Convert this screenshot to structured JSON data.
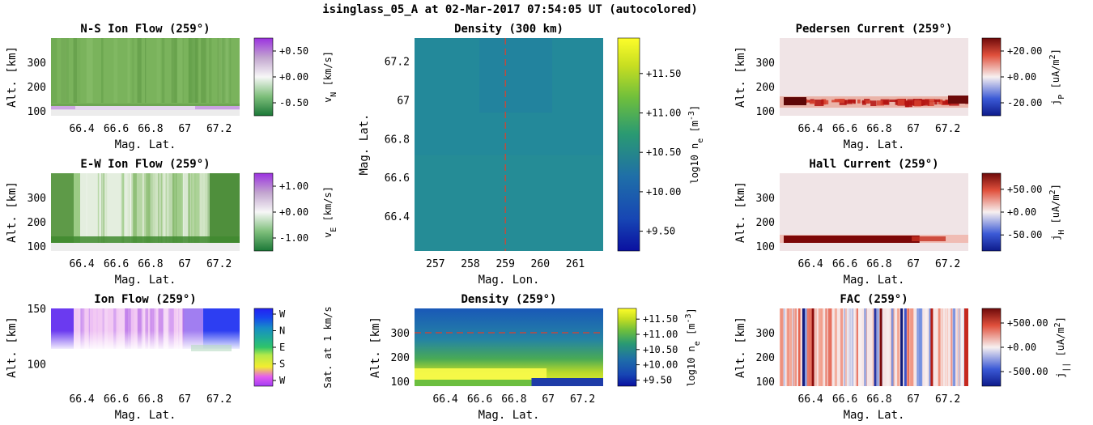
{
  "figure": {
    "suptitle": "isinglass_05_A at 02-Mar-2017 07:54:05 UT (autocolored)"
  },
  "chart_data": [
    {
      "id": "ns",
      "type": "heatmap",
      "title": "N-S Ion Flow (259°)",
      "xlabel": "Mag. Lat.",
      "ylabel": "Alt. [km]",
      "xticks": [
        "66.4",
        "66.6",
        "66.8",
        "67",
        "67.2"
      ],
      "yticks": [
        "100",
        "200",
        "300"
      ],
      "xlim": [
        66.22,
        67.32
      ],
      "ylim": [
        80,
        400
      ],
      "colorbar": {
        "label": "v_N [km/s]",
        "colormap": "PRGn",
        "range": [
          -0.75,
          0.75
        ],
        "ticks": [
          "+0.50",
          "+0.00",
          "-0.50"
        ],
        "tick_values": [
          0.5,
          0.0,
          -0.5
        ]
      }
    },
    {
      "id": "ew",
      "type": "heatmap",
      "title": "E-W Ion Flow (259°)",
      "xlabel": "Mag. Lat.",
      "ylabel": "Alt. [km]",
      "xticks": [
        "66.4",
        "66.6",
        "66.8",
        "67",
        "67.2"
      ],
      "yticks": [
        "100",
        "200",
        "300"
      ],
      "xlim": [
        66.22,
        67.32
      ],
      "ylim": [
        80,
        400
      ],
      "colorbar": {
        "label": "v_E [km/s]",
        "colormap": "PRGn",
        "range": [
          -1.5,
          1.5
        ],
        "ticks": [
          "+1.00",
          "+0.00",
          "-1.00"
        ],
        "tick_values": [
          1.0,
          0.0,
          -1.0
        ]
      }
    },
    {
      "id": "flow",
      "type": "heatmap",
      "title": "Ion Flow (259°)",
      "xlabel": "Mag. Lat.",
      "ylabel": "Alt. [km]",
      "xticks": [
        "66.4",
        "66.6",
        "66.8",
        "67",
        "67.2"
      ],
      "yticks": [
        "100",
        "150"
      ],
      "xlim": [
        66.22,
        67.32
      ],
      "ylim": [
        80,
        150
      ],
      "colorbar": {
        "label": "Sat. at 1 km/s",
        "colormap": "direction",
        "ticks": [
          "W",
          "N",
          "E",
          "S",
          "W"
        ]
      }
    },
    {
      "id": "dens300",
      "type": "heatmap",
      "title": "Density (300 km)",
      "xlabel": "Mag. Lon.",
      "ylabel": "Mag. Lat.",
      "xticks": [
        "257",
        "258",
        "259",
        "260",
        "261"
      ],
      "yticks": [
        "66.4",
        "66.6",
        "66.8",
        "67",
        "67.2"
      ],
      "xlim": [
        256.4,
        261.8
      ],
      "ylim": [
        66.22,
        67.32
      ],
      "marker_line": {
        "axis": "x",
        "value": 259
      },
      "colorbar": {
        "label": "log10 n_e [m^-3]",
        "colormap": "viridis",
        "range": [
          9.25,
          11.95
        ],
        "ticks": [
          "+11.50",
          "+11.00",
          "+10.50",
          "+10.00",
          "+9.50"
        ],
        "tick_values": [
          11.5,
          11.0,
          10.5,
          10.0,
          9.5
        ]
      }
    },
    {
      "id": "dens",
      "type": "heatmap",
      "title": "Density (259°)",
      "xlabel": "Mag. Lat.",
      "ylabel": "Alt. [km]",
      "xticks": [
        "66.4",
        "66.6",
        "66.8",
        "67",
        "67.2"
      ],
      "yticks": [
        "100",
        "200",
        "300"
      ],
      "xlim": [
        66.22,
        67.32
      ],
      "ylim": [
        80,
        400
      ],
      "marker_line": {
        "axis": "y",
        "value": 300
      },
      "colorbar": {
        "label": "log10 n_e [m^-3]",
        "colormap": "viridis",
        "range": [
          9.3,
          11.85
        ],
        "ticks": [
          "+11.50",
          "+11.00",
          "+10.50",
          "+10.00",
          "+9.50"
        ],
        "tick_values": [
          11.5,
          11.0,
          10.5,
          10.0,
          9.5
        ]
      }
    },
    {
      "id": "ped",
      "type": "heatmap",
      "title": "Pedersen Current (259°)",
      "xlabel": "Mag. Lat.",
      "ylabel": "Alt. [km]",
      "xticks": [
        "66.4",
        "66.6",
        "66.8",
        "67",
        "67.2"
      ],
      "yticks": [
        "100",
        "200",
        "300"
      ],
      "xlim": [
        66.22,
        67.32
      ],
      "ylim": [
        80,
        400
      ],
      "colorbar": {
        "label": "j_P [uA/m^2]",
        "colormap": "RdBu_r",
        "range": [
          -30,
          30
        ],
        "ticks": [
          "+20.00",
          "+0.00",
          "-20.00"
        ],
        "tick_values": [
          20,
          0,
          -20
        ]
      }
    },
    {
      "id": "hall",
      "type": "heatmap",
      "title": "Hall Current (259°)",
      "xlabel": "Mag. Lat.",
      "ylabel": "Alt. [km]",
      "xticks": [
        "66.4",
        "66.6",
        "66.8",
        "67",
        "67.2"
      ],
      "yticks": [
        "100",
        "200",
        "300"
      ],
      "xlim": [
        66.22,
        67.32
      ],
      "ylim": [
        80,
        400
      ],
      "colorbar": {
        "label": "j_H [uA/m^2]",
        "colormap": "RdBu_r",
        "range": [
          -85,
          85
        ],
        "ticks": [
          "+50.00",
          "+0.00",
          "-50.00"
        ],
        "tick_values": [
          50,
          0,
          -50
        ]
      }
    },
    {
      "id": "fac",
      "type": "heatmap",
      "title": "FAC (259°)",
      "xlabel": "Mag. Lat.",
      "ylabel": "Alt. [km]",
      "xticks": [
        "66.4",
        "66.6",
        "66.8",
        "67",
        "67.2"
      ],
      "yticks": [
        "100",
        "200",
        "300"
      ],
      "xlim": [
        66.22,
        67.32
      ],
      "ylim": [
        80,
        400
      ],
      "colorbar": {
        "label": "j_|| [uA/m^2]",
        "colormap": "RdBu_r",
        "range": [
          -800,
          800
        ],
        "ticks": [
          "+500.00",
          "+0.00",
          "-500.00"
        ],
        "tick_values": [
          500,
          0,
          -500
        ]
      }
    }
  ]
}
